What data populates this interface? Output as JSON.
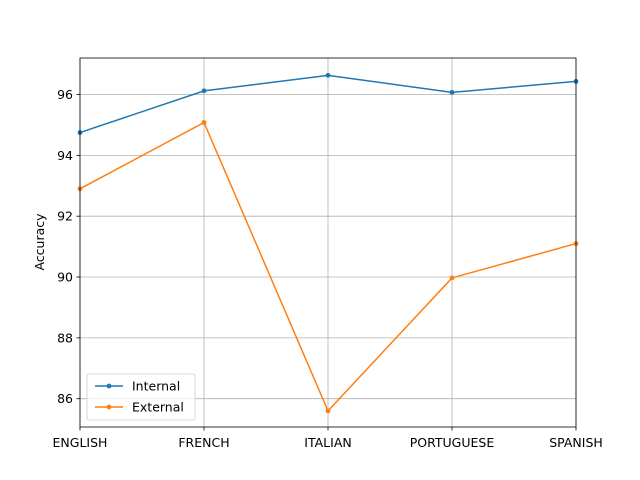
{
  "chart_data": {
    "type": "line",
    "title": "",
    "xlabel": "",
    "ylabel": "Accuracy",
    "categories": [
      "ENGLISH",
      "FRENCH",
      "ITALIAN",
      "PORTUGUESE",
      "SPANISH"
    ],
    "ylim": [
      85.07,
      97.2
    ],
    "yticks": [
      86,
      88,
      90,
      92,
      94,
      96
    ],
    "grid": true,
    "legend_position": "lower-left",
    "series": [
      {
        "name": "Internal",
        "color": "#1f77b4",
        "values": [
          94.75,
          96.12,
          96.63,
          96.07,
          96.43
        ]
      },
      {
        "name": "External",
        "color": "#ff7f0e",
        "values": [
          92.9,
          95.08,
          85.6,
          89.97,
          91.1
        ]
      }
    ]
  }
}
